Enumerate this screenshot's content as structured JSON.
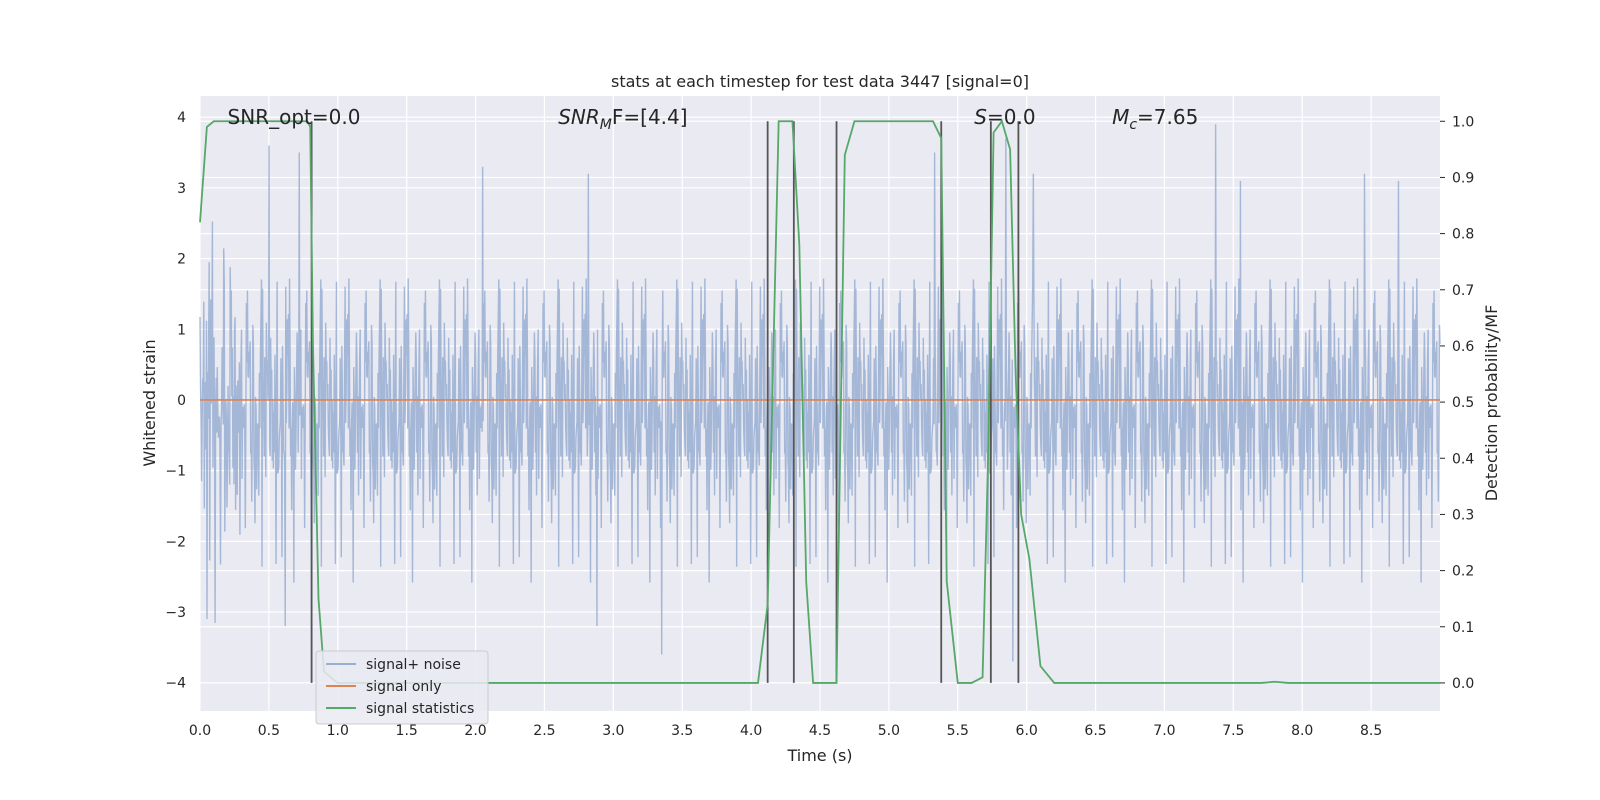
{
  "chart_data": {
    "type": "line",
    "title": "stats at each timestep for test data 3447 [signal=0]",
    "xlabel": "Time (s)",
    "ylabel": "Whitened strain",
    "ylabel_right": "Detection probability/MF",
    "xlim": [
      0,
      9.0
    ],
    "ylim": [
      -4.4,
      4.3
    ],
    "ylim_right": [
      -0.05,
      1.045
    ],
    "x_ticks": [
      0.0,
      0.5,
      1.0,
      1.5,
      2.0,
      2.5,
      3.0,
      3.5,
      4.0,
      4.5,
      5.0,
      5.5,
      6.0,
      6.5,
      7.0,
      7.5,
      8.0,
      8.5
    ],
    "x_tick_labels": [
      "0.0",
      "0.5",
      "1.0",
      "1.5",
      "2.0",
      "2.5",
      "3.0",
      "3.5",
      "4.0",
      "4.5",
      "5.0",
      "5.5",
      "6.0",
      "6.5",
      "7.0",
      "7.5",
      "8.0",
      "8.5"
    ],
    "y_ticks": [
      -4,
      -3,
      -2,
      -1,
      0,
      1,
      2,
      3,
      4
    ],
    "y_tick_labels": [
      "−4",
      "−3",
      "−2",
      "−1",
      "0",
      "1",
      "2",
      "3",
      "4"
    ],
    "y_ticks_right": [
      0.0,
      0.1,
      0.2,
      0.3,
      0.4,
      0.5,
      0.6,
      0.7,
      0.8,
      0.9,
      1.0
    ],
    "y_tick_labels_right": [
      "0.0",
      "0.1",
      "0.2",
      "0.3",
      "0.4",
      "0.5",
      "0.6",
      "0.7",
      "0.8",
      "0.9",
      "1.0"
    ],
    "grid": true,
    "legend_position": "lower-left",
    "annotations": [
      {
        "id": "snr-opt",
        "text": "SNR_opt=0.0",
        "x": 0.2
      },
      {
        "id": "snr-mf",
        "text": "SNR",
        "sub": "M",
        "suffix": "F=[4.4]",
        "x": 2.6
      },
      {
        "id": "s-stat",
        "text": "S",
        "suffix": "=0.0",
        "x": 5.62
      },
      {
        "id": "mc",
        "text": "M",
        "sub": "c",
        "suffix": "=7.65",
        "x": 6.62
      }
    ],
    "series": [
      {
        "name": "signal+ noise",
        "color": "#98aed2",
        "axis": "left",
        "kind": "noise",
        "seed": 3447,
        "n": 2300,
        "peaks": [
          [
            0.05,
            -3.1
          ],
          [
            0.5,
            3.6
          ],
          [
            0.62,
            -3.2
          ],
          [
            0.72,
            3.5
          ],
          [
            0.81,
            -4.0
          ],
          [
            2.05,
            3.3
          ],
          [
            2.82,
            3.2
          ],
          [
            2.88,
            -3.2
          ],
          [
            3.35,
            -3.6
          ],
          [
            5.33,
            3.5
          ],
          [
            5.85,
            3.7
          ],
          [
            5.9,
            -3.7
          ],
          [
            6.05,
            3.2
          ],
          [
            7.37,
            3.9
          ],
          [
            7.55,
            3.1
          ],
          [
            8.45,
            3.2
          ],
          [
            8.7,
            3.1
          ]
        ]
      },
      {
        "name": "signal only",
        "color": "#dd8452",
        "axis": "left",
        "x": [
          0.0,
          9.0
        ],
        "y": [
          0.0,
          0.0
        ]
      },
      {
        "name": "signal statistics",
        "color": "#55a868",
        "axis": "right",
        "x": [
          0.0,
          0.05,
          0.1,
          0.4,
          0.78,
          0.8,
          0.82,
          0.86,
          0.9,
          1.0,
          4.05,
          4.12,
          4.2,
          4.3,
          4.35,
          4.4,
          4.45,
          4.62,
          4.68,
          4.75,
          5.32,
          5.38,
          5.42,
          5.5,
          5.6,
          5.68,
          5.72,
          5.76,
          5.82,
          5.88,
          5.92,
          5.96,
          6.02,
          6.1,
          6.2,
          6.3,
          7.7,
          7.8,
          7.9,
          9.0
        ],
        "y": [
          0.82,
          0.99,
          1.0,
          1.0,
          1.0,
          0.99,
          0.6,
          0.15,
          0.02,
          0.0,
          0.0,
          0.14,
          1.0,
          1.0,
          0.78,
          0.18,
          0.0,
          0.0,
          0.94,
          1.0,
          1.0,
          0.97,
          0.18,
          0.0,
          0.0,
          0.01,
          0.4,
          0.98,
          1.0,
          0.95,
          0.55,
          0.3,
          0.22,
          0.03,
          0.0,
          0.0,
          0.0,
          0.002,
          0.0,
          0.0
        ]
      }
    ],
    "vlines": {
      "color": "#555555",
      "x": [
        0.81,
        4.12,
        4.31,
        4.62,
        5.38,
        5.74,
        5.94
      ]
    }
  }
}
